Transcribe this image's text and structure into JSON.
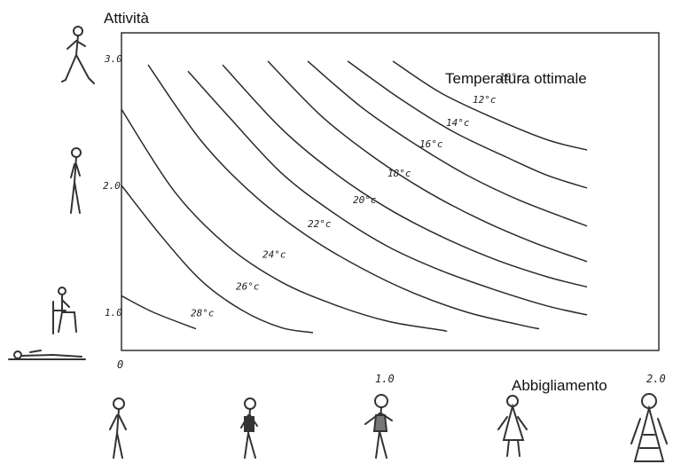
{
  "chart_data": {
    "type": "line",
    "title": "Temperatura ottimale",
    "xlabel": "Abbigliamento",
    "ylabel": "Attività",
    "xlim": [
      0,
      2.0
    ],
    "ylim": [
      0.73,
      3.2
    ],
    "x_ticks": [
      "0",
      "1.0",
      "2.0"
    ],
    "y_ticks": [
      "1.0",
      "2.0",
      "3.0"
    ],
    "y_tick_values": [
      1.0,
      2.0,
      3.0
    ],
    "grid": false,
    "legend": "none",
    "series": [
      {
        "name": "28°C",
        "points": [
          [
            0.0,
            1.13
          ],
          [
            0.12,
            1.0
          ],
          [
            0.28,
            0.87
          ]
        ]
      },
      {
        "name": "26°C",
        "points": [
          [
            0.0,
            2.0
          ],
          [
            0.15,
            1.6
          ],
          [
            0.3,
            1.25
          ],
          [
            0.45,
            1.02
          ],
          [
            0.6,
            0.88
          ],
          [
            0.72,
            0.84
          ]
        ]
      },
      {
        "name": "24°C",
        "points": [
          [
            0.0,
            2.6
          ],
          [
            0.2,
            1.95
          ],
          [
            0.4,
            1.52
          ],
          [
            0.6,
            1.24
          ],
          [
            0.8,
            1.06
          ],
          [
            1.0,
            0.93
          ],
          [
            1.2,
            0.86
          ],
          [
            1.22,
            0.85
          ]
        ]
      },
      {
        "name": "22°C",
        "points": [
          [
            0.1,
            2.95
          ],
          [
            0.3,
            2.35
          ],
          [
            0.5,
            1.92
          ],
          [
            0.7,
            1.6
          ],
          [
            0.9,
            1.35
          ],
          [
            1.1,
            1.15
          ],
          [
            1.3,
            1.0
          ],
          [
            1.5,
            0.9
          ],
          [
            1.57,
            0.87
          ]
        ]
      },
      {
        "name": "20°C",
        "points": [
          [
            0.25,
            2.9
          ],
          [
            0.4,
            2.55
          ],
          [
            0.6,
            2.1
          ],
          [
            0.8,
            1.78
          ],
          [
            1.0,
            1.52
          ],
          [
            1.2,
            1.33
          ],
          [
            1.4,
            1.18
          ],
          [
            1.6,
            1.05
          ],
          [
            1.75,
            0.98
          ]
        ]
      },
      {
        "name": "18°C",
        "points": [
          [
            0.38,
            2.95
          ],
          [
            0.6,
            2.45
          ],
          [
            0.8,
            2.1
          ],
          [
            1.0,
            1.82
          ],
          [
            1.2,
            1.6
          ],
          [
            1.4,
            1.42
          ],
          [
            1.6,
            1.28
          ],
          [
            1.75,
            1.2
          ]
        ]
      },
      {
        "name": "16°C",
        "points": [
          [
            0.55,
            2.98
          ],
          [
            0.75,
            2.55
          ],
          [
            0.95,
            2.22
          ],
          [
            1.15,
            1.95
          ],
          [
            1.35,
            1.73
          ],
          [
            1.55,
            1.55
          ],
          [
            1.75,
            1.4
          ]
        ]
      },
      {
        "name": "14°C",
        "points": [
          [
            0.7,
            2.98
          ],
          [
            0.9,
            2.62
          ],
          [
            1.1,
            2.33
          ],
          [
            1.3,
            2.08
          ],
          [
            1.5,
            1.88
          ],
          [
            1.75,
            1.68
          ]
        ]
      },
      {
        "name": "12°C",
        "points": [
          [
            0.85,
            2.98
          ],
          [
            1.05,
            2.68
          ],
          [
            1.25,
            2.42
          ],
          [
            1.45,
            2.22
          ],
          [
            1.6,
            2.08
          ],
          [
            1.75,
            1.98
          ]
        ]
      },
      {
        "name": "10°C",
        "points": [
          [
            1.02,
            2.98
          ],
          [
            1.2,
            2.73
          ],
          [
            1.4,
            2.53
          ],
          [
            1.6,
            2.36
          ],
          [
            1.75,
            2.28
          ]
        ]
      }
    ],
    "curve_labels": [
      {
        "text": "28°c",
        "x": 0.26,
        "y": 0.97
      },
      {
        "text": "26°c",
        "x": 0.43,
        "y": 1.18
      },
      {
        "text": "24°c",
        "x": 0.53,
        "y": 1.43
      },
      {
        "text": "22°c",
        "x": 0.7,
        "y": 1.67
      },
      {
        "text": "20°c",
        "x": 0.87,
        "y": 1.86
      },
      {
        "text": "18°c",
        "x": 1.0,
        "y": 2.07
      },
      {
        "text": "16°c",
        "x": 1.12,
        "y": 2.3
      },
      {
        "text": "14°c",
        "x": 1.22,
        "y": 2.47
      },
      {
        "text": "12°c",
        "x": 1.32,
        "y": 2.65
      },
      {
        "text": "10°c",
        "x": 1.42,
        "y": 2.83
      }
    ]
  },
  "figures": {
    "activity": [
      "walking",
      "standing",
      "sitting",
      "lying"
    ],
    "clothing": [
      "nude",
      "swimsuit",
      "light-dress",
      "coat",
      "heavy-coat"
    ]
  }
}
